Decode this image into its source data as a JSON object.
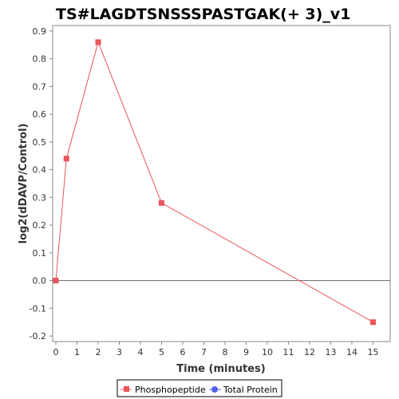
{
  "chart_data": {
    "type": "line",
    "title": "TS#LAGDTSNSSSPASTGAK(+ 3)_v1",
    "xlabel": "Time (minutes)",
    "ylabel": "log2(dDAVP/Control)",
    "xlim": [
      0,
      15.7
    ],
    "ylim": [
      -0.22,
      0.92
    ],
    "x_ticks": [
      0,
      1,
      2,
      3,
      4,
      5,
      6,
      7,
      8,
      9,
      10,
      11,
      12,
      13,
      14,
      15
    ],
    "y_ticks": [
      -0.2,
      -0.1,
      0.0,
      0.1,
      0.2,
      0.3,
      0.4,
      0.5,
      0.6,
      0.7,
      0.8,
      0.9
    ],
    "y_tick_labels": [
      "-0.2",
      "-0.1",
      "0.0",
      "0.1",
      "0.2",
      "0.3",
      "0.4",
      "0.5",
      "0.6",
      "0.7",
      "0.8",
      "0.9"
    ],
    "reference_line_y": 0,
    "grid": false,
    "legend_position": "bottom",
    "series": [
      {
        "name": "Phosphopeptide",
        "color": "#e8555a",
        "marker": "square",
        "x": [
          0,
          0.5,
          2,
          5,
          15
        ],
        "y": [
          0.0,
          0.44,
          0.86,
          0.28,
          -0.15
        ]
      },
      {
        "name": "Total Protein",
        "color": "#5560e8",
        "marker": "circle",
        "x": [],
        "y": []
      }
    ]
  }
}
